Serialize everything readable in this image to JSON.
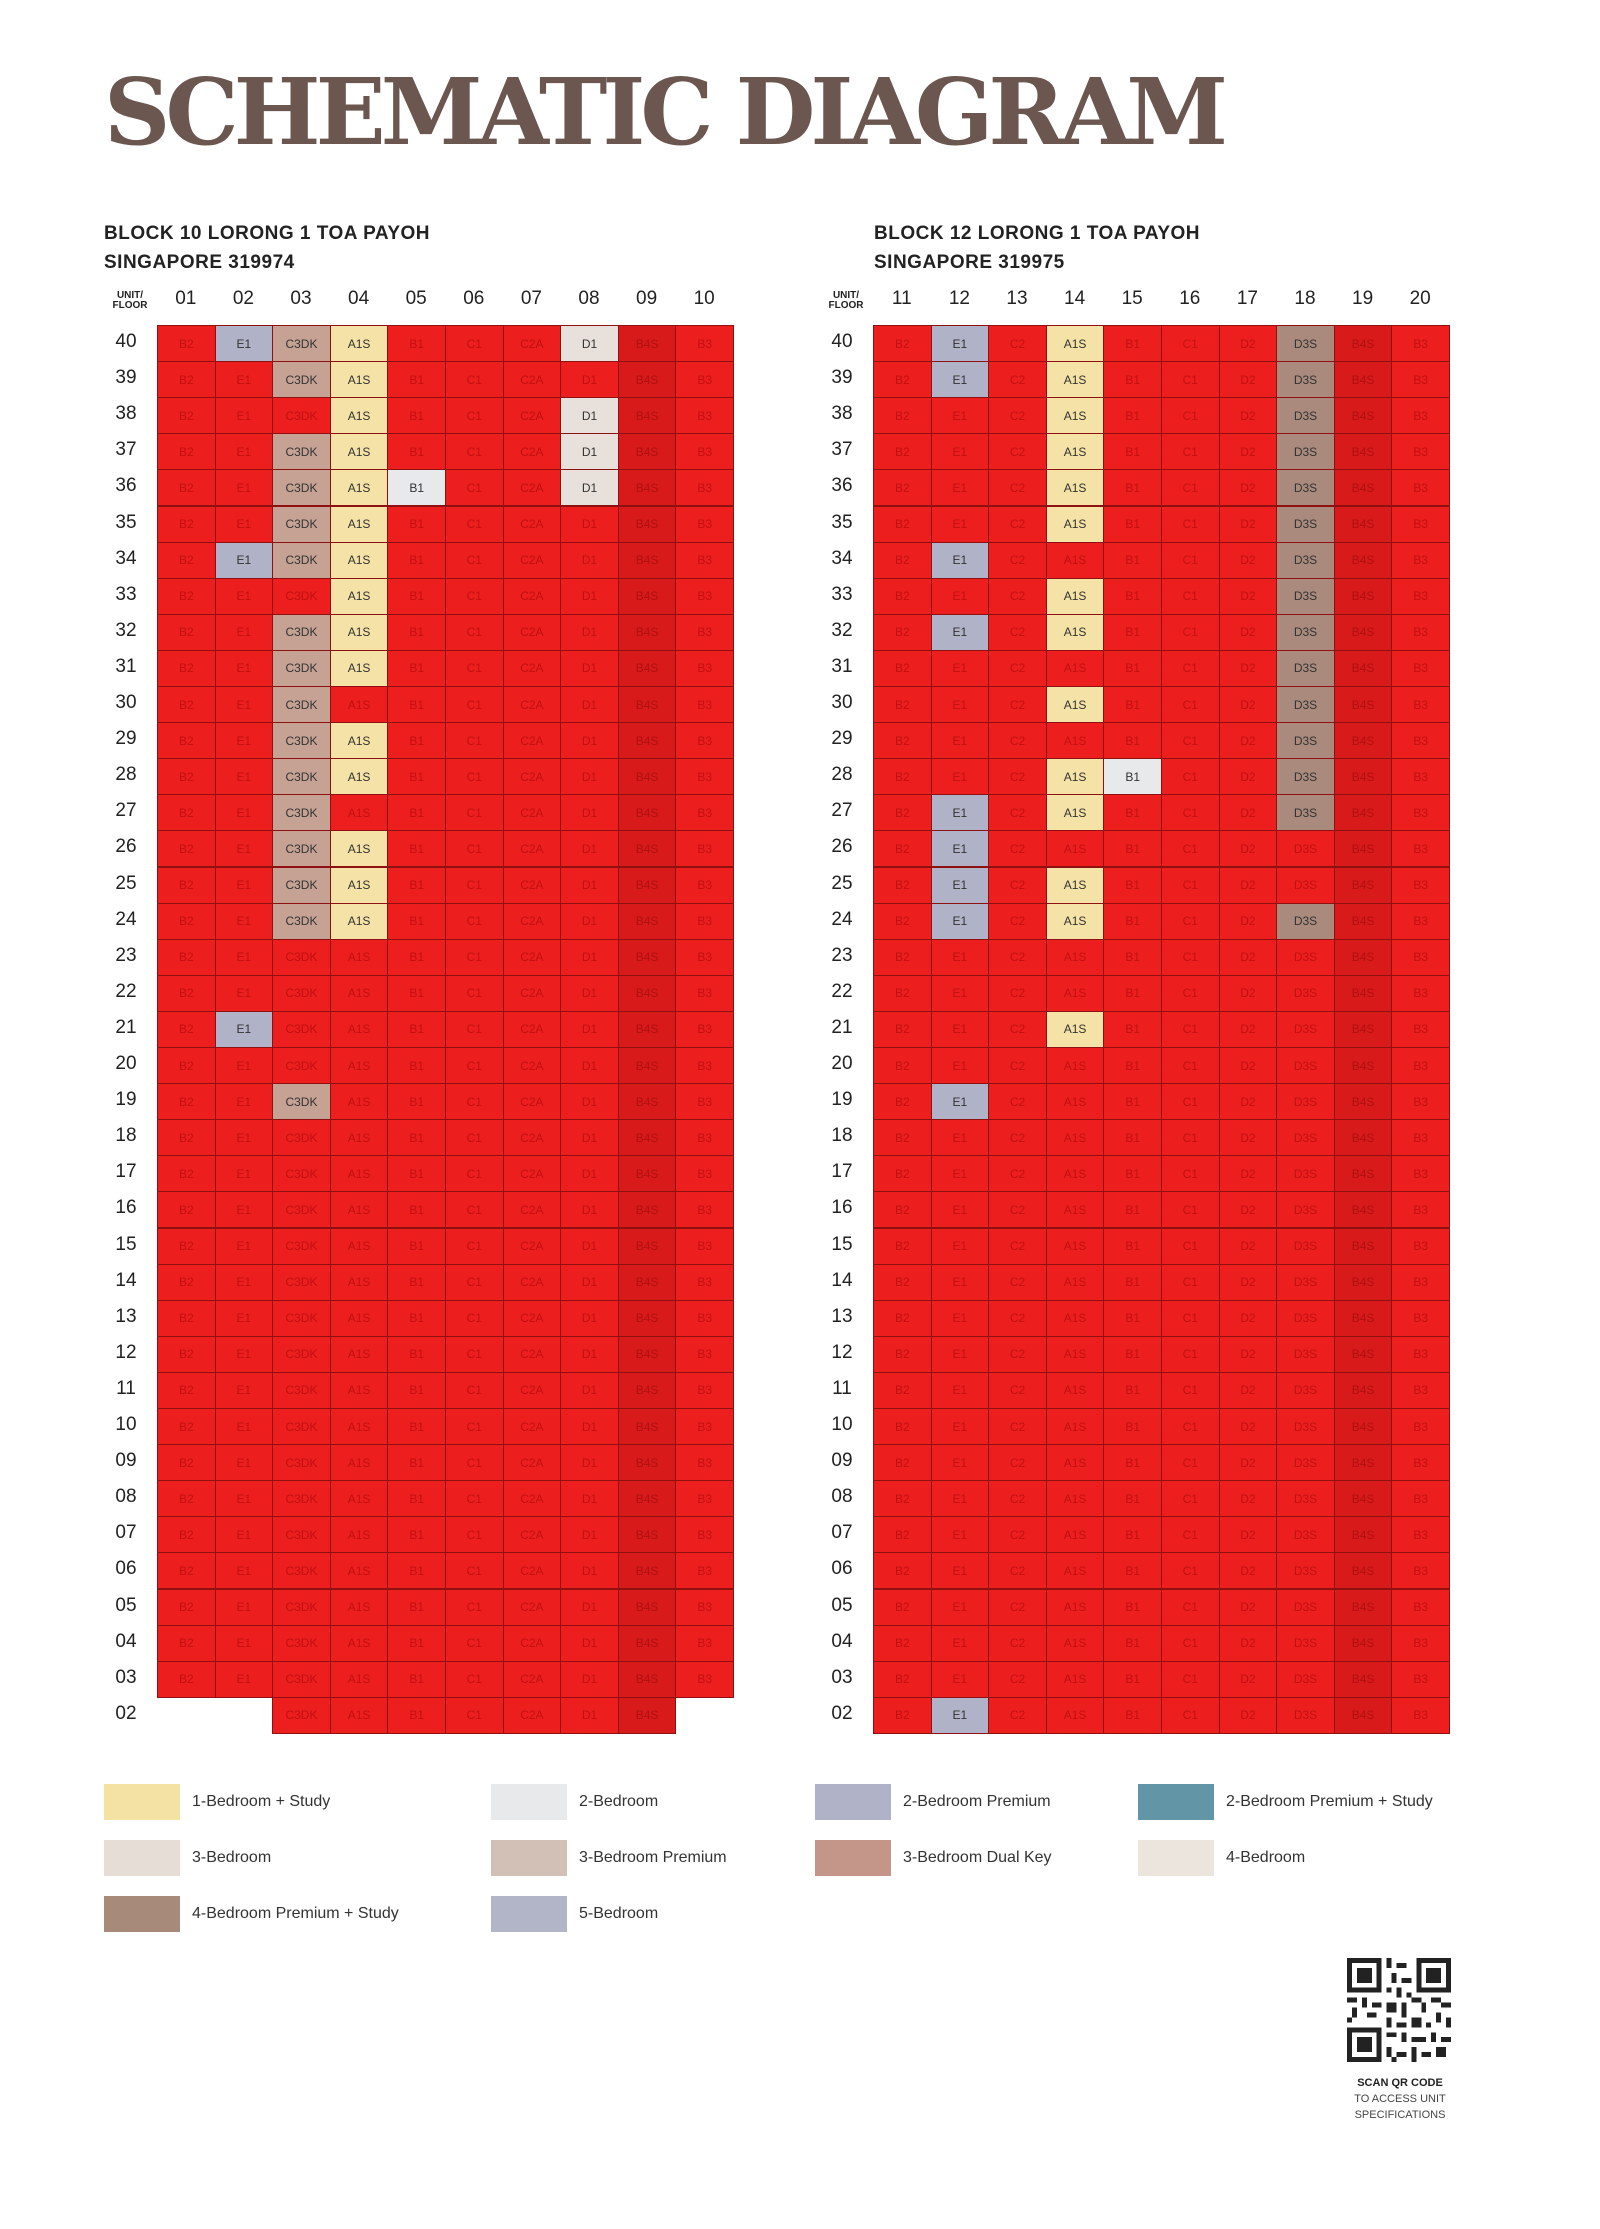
{
  "title": "SCHEMATIC DIAGRAM",
  "blocks": [
    {
      "address_line1": "BLOCK 10 LORONG 1 TOA PAYOH",
      "address_line2": "SINGAPORE 319974",
      "header_label": "UNIT/\nFLOOR",
      "units": [
        "01",
        "02",
        "03",
        "04",
        "05",
        "06",
        "07",
        "08",
        "09",
        "10"
      ],
      "unit_types": [
        "B2",
        "E1",
        "C3DK",
        "A1S",
        "B1",
        "C1",
        "C2A",
        "D1",
        "B4S",
        "B3"
      ],
      "floors": [
        "40",
        "39",
        "38",
        "37",
        "36",
        "35",
        "34",
        "33",
        "32",
        "31",
        "30",
        "29",
        "28",
        "27",
        "26",
        "25",
        "24",
        "23",
        "22",
        "21",
        "20",
        "19",
        "18",
        "17",
        "16",
        "15",
        "14",
        "13",
        "12",
        "11",
        "10",
        "09",
        "08",
        "07",
        "06",
        "05",
        "04",
        "03",
        "02"
      ],
      "missing": {
        "02": [
          "01",
          "02",
          "10"
        ]
      },
      "available": {
        "40": [
          "02",
          "03",
          "04",
          "08"
        ],
        "39": [
          "03",
          "04"
        ],
        "38": [
          "04",
          "08"
        ],
        "37": [
          "03",
          "04",
          "08"
        ],
        "36": [
          "03",
          "04",
          "05",
          "08"
        ],
        "35": [
          "03",
          "04"
        ],
        "34": [
          "02",
          "03",
          "04"
        ],
        "33": [
          "04"
        ],
        "32": [
          "03",
          "04"
        ],
        "31": [
          "03",
          "04"
        ],
        "30": [
          "03"
        ],
        "29": [
          "03",
          "04"
        ],
        "28": [
          "03",
          "04"
        ],
        "27": [
          "03"
        ],
        "26": [
          "03",
          "04"
        ],
        "25": [
          "03",
          "04"
        ],
        "24": [
          "03",
          "04"
        ],
        "21": [
          "02"
        ],
        "19": [
          "03"
        ]
      }
    },
    {
      "address_line1": "BLOCK 12 LORONG 1 TOA PAYOH",
      "address_line2": "SINGAPORE 319975",
      "header_label": "UNIT/\nFLOOR",
      "units": [
        "11",
        "12",
        "13",
        "14",
        "15",
        "16",
        "17",
        "18",
        "19",
        "20"
      ],
      "unit_types": [
        "B2",
        "E1",
        "C2",
        "A1S",
        "B1",
        "C1",
        "D2",
        "D3S",
        "B4S",
        "B3"
      ],
      "floors": [
        "40",
        "39",
        "38",
        "37",
        "36",
        "35",
        "34",
        "33",
        "32",
        "31",
        "30",
        "29",
        "28",
        "27",
        "26",
        "25",
        "24",
        "23",
        "22",
        "21",
        "20",
        "19",
        "18",
        "17",
        "16",
        "15",
        "14",
        "13",
        "12",
        "11",
        "10",
        "09",
        "08",
        "07",
        "06",
        "05",
        "04",
        "03",
        "02"
      ],
      "missing": {},
      "available": {
        "40": [
          "12",
          "14",
          "18"
        ],
        "39": [
          "12",
          "14",
          "18"
        ],
        "38": [
          "14",
          "18"
        ],
        "37": [
          "14",
          "18"
        ],
        "36": [
          "14",
          "18"
        ],
        "35": [
          "14",
          "18"
        ],
        "34": [
          "12",
          "18"
        ],
        "33": [
          "14",
          "18"
        ],
        "32": [
          "12",
          "14",
          "18"
        ],
        "31": [
          "18"
        ],
        "30": [
          "14",
          "18"
        ],
        "29": [
          "18"
        ],
        "28": [
          "14",
          "15",
          "18"
        ],
        "27": [
          "12",
          "14",
          "18"
        ],
        "26": [
          "12"
        ],
        "25": [
          "12",
          "14"
        ],
        "24": [
          "12",
          "14",
          "18"
        ],
        "21": [
          "14"
        ],
        "19": [
          "12"
        ],
        "02": [
          "12"
        ]
      }
    }
  ],
  "type_colors": {
    "A1S": "#f5e2a6",
    "B1": "#e7e9ea",
    "E1": "#b0b3c7",
    "C3DK": "#c6a294",
    "D1": "#e8e1db",
    "D3S": "#a98a7c"
  },
  "legend": [
    {
      "label": "1-Bedroom + Study",
      "color": "#f4e2a4"
    },
    {
      "label": "2-Bedroom",
      "color": "#e7e9ea"
    },
    {
      "label": "2-Bedroom Premium",
      "color": "#b0b3c7"
    },
    {
      "label": "2-Bedroom Premium + Study",
      "color": "#6295a6"
    },
    {
      "label": "3-Bedroom",
      "color": "#e6ddd7"
    },
    {
      "label": "3-Bedroom Premium",
      "color": "#d2bfb6"
    },
    {
      "label": "3-Bedroom Dual Key",
      "color": "#c4968a"
    },
    {
      "label": "4-Bedroom",
      "color": "#ebe5de"
    },
    {
      "label": "4-Bedroom Premium + Study",
      "color": "#a88a7b"
    },
    {
      "label": "5-Bedroom",
      "color": "#b2b4c8"
    }
  ],
  "qr": {
    "caption_bold": "SCAN QR CODE",
    "caption_line2": "TO ACCESS UNIT",
    "caption_line3": "SPECIFICATIONS"
  },
  "sold_color": "#ec1e1e"
}
